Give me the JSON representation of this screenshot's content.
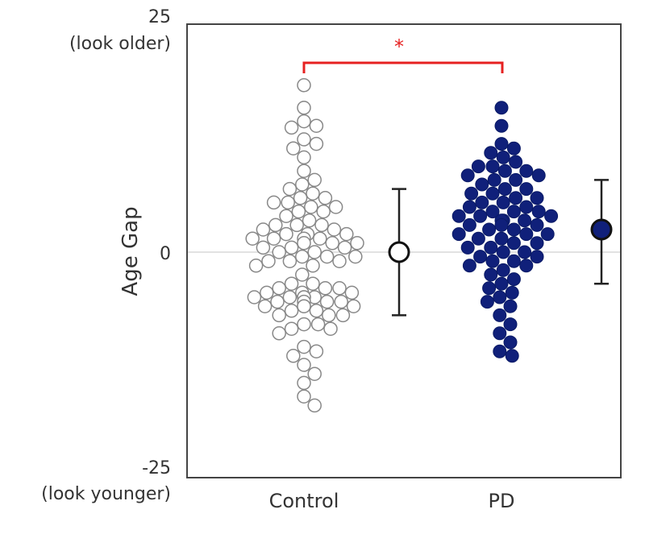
{
  "chart_data": {
    "type": "scatter",
    "subtype": "beeswarm",
    "ylabel": "Age Gap",
    "ylim": [
      -25,
      25
    ],
    "y_ticks": [
      {
        "value": 25,
        "label": "25",
        "sublabel": "(look older)"
      },
      {
        "value": 0,
        "label": "0",
        "sublabel": ""
      },
      {
        "value": -25,
        "label": "-25",
        "sublabel": "(look younger)"
      }
    ],
    "categories": [
      "Control",
      "PD"
    ],
    "reference_line": 0,
    "significance": {
      "label": "*",
      "between": [
        "Control",
        "PD"
      ],
      "y": 21
    },
    "series": [
      {
        "name": "Control",
        "marker": "open-circle",
        "color": "#888888",
        "fill": "#ffffff",
        "summary": {
          "mean": 0.0,
          "upper": 7.0,
          "lower": -7.0
        },
        "values": [
          18.5,
          16.0,
          14.5,
          14.0,
          13.8,
          12.5,
          12.0,
          11.5,
          10.5,
          9.0,
          8.0,
          7.5,
          7.0,
          6.5,
          6.0,
          6.0,
          5.5,
          5.5,
          5.0,
          5.0,
          4.5,
          4.5,
          4.0,
          3.5,
          3.0,
          3.0,
          3.0,
          2.5,
          2.5,
          2.0,
          2.0,
          2.0,
          1.5,
          1.5,
          1.5,
          1.5,
          1.0,
          1.0,
          1.0,
          0.5,
          0.5,
          0.5,
          0.0,
          0.0,
          -0.5,
          -0.5,
          -0.5,
          -1.0,
          -1.0,
          -1.0,
          -1.5,
          -1.5,
          -2.5,
          -3.5,
          -3.5,
          -4.0,
          -4.0,
          -4.0,
          -4.5,
          -4.5,
          -4.5,
          -5.0,
          -5.0,
          -5.0,
          -5.0,
          -5.0,
          -5.5,
          -5.5,
          -5.5,
          -5.5,
          -6.0,
          -6.0,
          -6.0,
          -6.0,
          -6.5,
          -6.5,
          -7.0,
          -7.0,
          -7.0,
          -8.0,
          -8.0,
          -8.5,
          -8.5,
          -9.0,
          -10.5,
          -11.0,
          -11.5,
          -12.5,
          -13.5,
          -14.5,
          -16.0,
          -17.0
        ]
      },
      {
        "name": "PD",
        "marker": "filled-circle",
        "color": "#0a1a66",
        "fill": "#10207a",
        "summary": {
          "mean": 2.5,
          "upper": 8.0,
          "lower": -3.5
        },
        "values": [
          16.0,
          14.0,
          12.0,
          11.5,
          11.0,
          10.5,
          10.0,
          9.5,
          9.5,
          9.0,
          9.0,
          8.5,
          8.5,
          8.0,
          8.0,
          7.5,
          7.0,
          7.0,
          6.5,
          6.5,
          6.0,
          6.0,
          5.5,
          5.5,
          5.0,
          5.0,
          4.5,
          4.5,
          4.5,
          4.0,
          4.0,
          4.0,
          3.5,
          3.5,
          3.5,
          3.0,
          3.0,
          3.0,
          2.5,
          2.5,
          2.0,
          2.0,
          2.0,
          1.5,
          1.5,
          1.0,
          1.0,
          0.5,
          0.5,
          0.0,
          0.0,
          -0.5,
          -0.5,
          -1.0,
          -1.0,
          -1.5,
          -1.5,
          -2.0,
          -2.5,
          -3.0,
          -3.5,
          -4.0,
          -4.5,
          -5.0,
          -5.5,
          -6.0,
          -7.0,
          -8.0,
          -9.0,
          -10.0,
          -11.0,
          -11.5
        ]
      }
    ]
  }
}
